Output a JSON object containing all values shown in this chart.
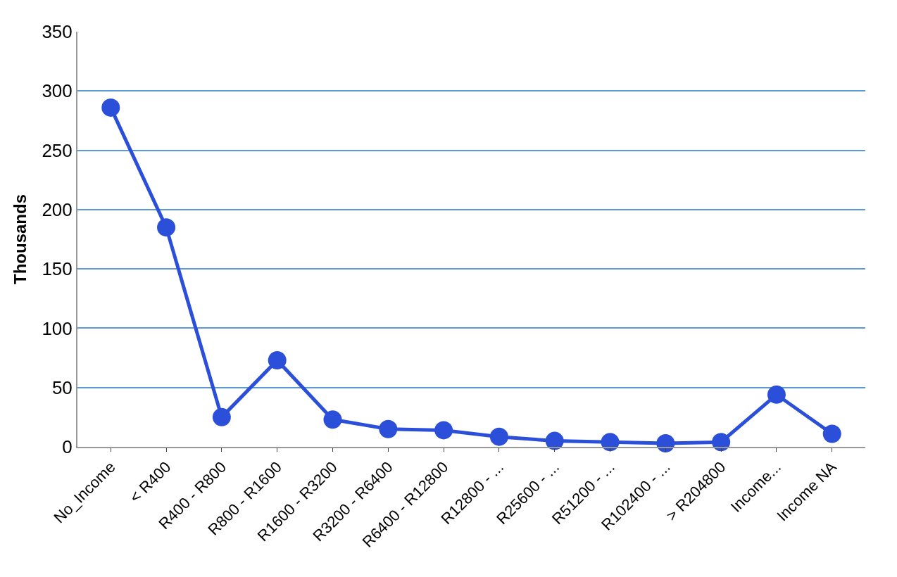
{
  "chart_data": {
    "type": "line",
    "ylabel": "Thousands",
    "categories": [
      "No_Income",
      "< R400",
      "R400 - R800",
      "R800 - R1600",
      "R1600 - R3200",
      "R3200 - R6400",
      "R6400 - R12800",
      "R12800 - ...",
      "R25600 - ...",
      "R51200 - ...",
      "R102400 - ...",
      "> R204800",
      "Income...",
      "Income NA"
    ],
    "series": [
      {
        "color": "#2b4fd8",
        "values": [
          286,
          185,
          25,
          73,
          23,
          15,
          14,
          8.5,
          5,
          4,
          3,
          4,
          44,
          11
        ]
      }
    ],
    "ylim": [
      0,
      350
    ],
    "yticks": [
      0,
      50,
      100,
      150,
      200,
      250,
      300,
      350
    ],
    "grid": "y",
    "marker": "circle",
    "line_style": "solid"
  }
}
